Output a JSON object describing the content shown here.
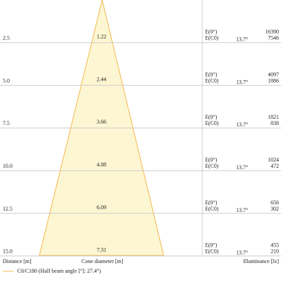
{
  "rows": [
    {
      "distance": "2.5",
      "diameter": "1.22",
      "e0_label": "E(0°)",
      "ec0_label": "E(C0)",
      "angle": "13.7°",
      "e0": "16390",
      "ec0": "7546"
    },
    {
      "distance": "5.0",
      "diameter": "2.44",
      "e0_label": "E(0°)",
      "ec0_label": "E(C0)",
      "angle": "13.7°",
      "e0": "4097",
      "ec0": "1886"
    },
    {
      "distance": "7.5",
      "diameter": "3.66",
      "e0_label": "E(0°)",
      "ec0_label": "E(C0)",
      "angle": "13.7°",
      "e0": "1821",
      "ec0": "838"
    },
    {
      "distance": "10.0",
      "diameter": "4.88",
      "e0_label": "E(0°)",
      "ec0_label": "E(C0)",
      "angle": "13.7°",
      "e0": "1024",
      "ec0": "472"
    },
    {
      "distance": "12.5",
      "diameter": "6.09",
      "e0_label": "E(0°)",
      "ec0_label": "E(C0)",
      "angle": "13.7°",
      "e0": "656",
      "ec0": "302"
    },
    {
      "distance": "15.0",
      "diameter": "7.31",
      "e0_label": "E(0°)",
      "ec0_label": "E(C0)",
      "angle": "13.7°",
      "e0": "455",
      "ec0": "210"
    }
  ],
  "footer": {
    "distance": "Distance [m]",
    "diameter": "Cone diameter [m]",
    "illuminance": "Illuminance [lx]"
  },
  "legend": "C0/C180 (Half beam angle [°]: 27.4°)"
}
